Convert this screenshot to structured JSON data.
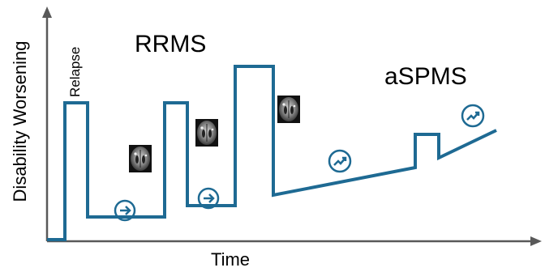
{
  "labels": {
    "y_axis": "Disability Worsening",
    "x_axis": "Time",
    "relapse": "Relapse",
    "rrms": "RRMS",
    "aspms": "aSPMS"
  },
  "colors": {
    "line": "#1e6a93",
    "axis": "#595959",
    "icon": "#1e6a93"
  },
  "icons": {
    "arrow_1": "arrow-right-circle-icon",
    "arrow_2": "arrow-right-circle-icon",
    "trend_1": "trending-up-circle-icon",
    "trend_2": "trending-up-circle-icon",
    "brain_1": "brain-mri-icon",
    "brain_2": "brain-mri-icon",
    "brain_3": "brain-mri-icon"
  }
}
